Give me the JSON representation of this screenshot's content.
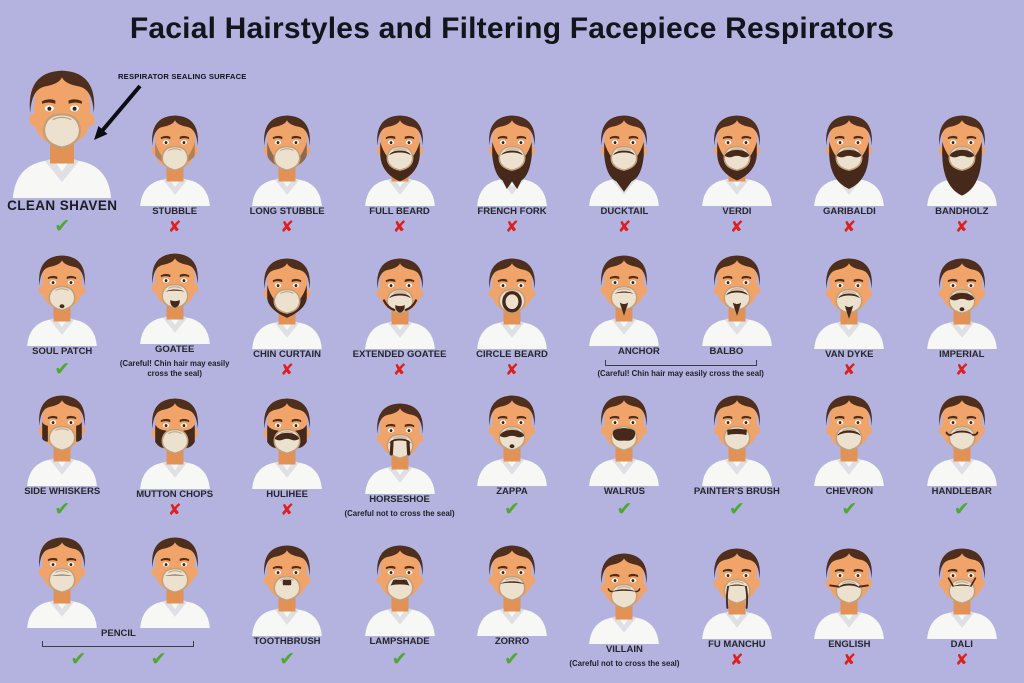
{
  "title": "Facial Hairstyles and Filtering Facepiece Respirators",
  "annotation": "RESPIRATOR SEALING SURFACE",
  "marks": {
    "check": "✔",
    "cross": "✘"
  },
  "colors": {
    "background": "#b4b3e0",
    "title": "#14141c",
    "check": "#4ea832",
    "cross": "#df1e1e"
  },
  "rows": [
    {
      "items": [
        {
          "label": "CLEAN SHAVEN",
          "mark": "check",
          "face": "clean",
          "hero": true
        },
        {
          "label": "STUBBLE",
          "mark": "cross",
          "face": "stubble"
        },
        {
          "label": "LONG STUBBLE",
          "mark": "cross",
          "face": "longstubble"
        },
        {
          "label": "FULL BEARD",
          "mark": "cross",
          "face": "full"
        },
        {
          "label": "FRENCH FORK",
          "mark": "cross",
          "face": "frenchfork"
        },
        {
          "label": "DUCKTAIL",
          "mark": "cross",
          "face": "ducktail"
        },
        {
          "label": "VERDI",
          "mark": "cross",
          "face": "verdi"
        },
        {
          "label": "GARIBALDI",
          "mark": "cross",
          "face": "garibaldi"
        },
        {
          "label": "BANDHOLZ",
          "mark": "cross",
          "face": "bandholz"
        }
      ]
    },
    {
      "items": [
        {
          "label": "SOUL PATCH",
          "mark": "check",
          "face": "soulpatch"
        },
        {
          "label": "GOATEE",
          "note": "(Careful! Chin hair may easily cross the seal)",
          "face": "goatee"
        },
        {
          "label": "CHIN CURTAIN",
          "mark": "cross",
          "face": "chincurtain"
        },
        {
          "label": "EXTENDED GOATEE",
          "mark": "cross",
          "face": "extendedgoatee"
        },
        {
          "label": "CIRCLE BEARD",
          "mark": "cross",
          "face": "circlebeard"
        },
        {
          "group": {
            "labels": [
              "ANCHOR",
              "BALBO"
            ],
            "faces": [
              "anchor",
              "balbo"
            ],
            "note": "(Careful! Chin hair may easily cross the seal)"
          }
        },
        {
          "label": "VAN DYKE",
          "mark": "cross",
          "face": "vandyke"
        },
        {
          "label": "IMPERIAL",
          "mark": "cross",
          "face": "imperial"
        }
      ]
    },
    {
      "items": [
        {
          "label": "SIDE WHISKERS",
          "mark": "check",
          "face": "sidewhiskers"
        },
        {
          "label": "MUTTON CHOPS",
          "mark": "cross",
          "face": "muttonchops"
        },
        {
          "label": "HULIHEE",
          "mark": "cross",
          "face": "hulihee"
        },
        {
          "label": "HORSESHOE",
          "note": "(Careful not to cross the seal)",
          "face": "horseshoe"
        },
        {
          "label": "ZAPPA",
          "mark": "check",
          "face": "zappa"
        },
        {
          "label": "WALRUS",
          "mark": "check",
          "face": "walrus"
        },
        {
          "label": "PAINTER'S BRUSH",
          "mark": "check",
          "face": "paintersbrush"
        },
        {
          "label": "CHEVRON",
          "mark": "check",
          "face": "chevron"
        },
        {
          "label": "HANDLEBAR",
          "mark": "check",
          "face": "handlebar"
        }
      ]
    },
    {
      "items": [
        {
          "group": {
            "labels": [
              "PENCIL"
            ],
            "faces": [
              "pencil",
              "pencil"
            ],
            "marks": [
              "check",
              "check"
            ]
          }
        },
        {
          "label": "TOOTHBRUSH",
          "mark": "check",
          "face": "toothbrush"
        },
        {
          "label": "LAMPSHADE",
          "mark": "check",
          "face": "lampshade"
        },
        {
          "label": "ZORRO",
          "mark": "check",
          "face": "zorro"
        },
        {
          "label": "VILLAIN",
          "note": "(Careful not to cross the seal)",
          "face": "villain"
        },
        {
          "label": "FU MANCHU",
          "mark": "cross",
          "face": "fumanchu"
        },
        {
          "label": "ENGLISH",
          "mark": "cross",
          "face": "english"
        },
        {
          "label": "DALI",
          "mark": "cross",
          "face": "dali"
        }
      ]
    }
  ]
}
